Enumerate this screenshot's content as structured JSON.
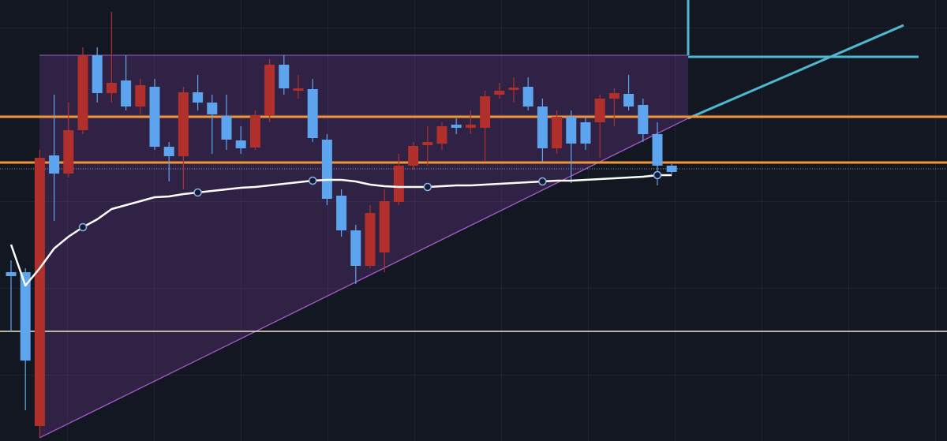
{
  "chart_data": {
    "type": "candlestick",
    "ylim": [
      0,
      559
    ],
    "up_color": "#b2302b",
    "down_color": "#5ea5f0",
    "open": [
      214,
      214,
      19,
      362,
      339,
      394,
      489,
      441,
      457,
      424,
      449,
      373,
      361,
      442,
      429,
      412,
      381,
      372,
      413,
      477,
      444,
      446,
      382,
      311,
      267,
      222,
      239,
      303,
      349,
      375,
      377,
      401,
      397,
      397,
      439,
      445,
      449,
      424,
      371,
      411,
      404,
      404,
      434,
      440,
      426,
      389,
      349
    ],
    "high": [
      229,
      219,
      369,
      439,
      429,
      499,
      499,
      544,
      489,
      459,
      459,
      379,
      449,
      464,
      439,
      439,
      399,
      419,
      484,
      489,
      464,
      459,
      389,
      319,
      274,
      299,
      319,
      364,
      379,
      399,
      404,
      409,
      419,
      444,
      454,
      461,
      461,
      434,
      419,
      419,
      411,
      439,
      447,
      464,
      434,
      404,
      351
    ],
    "low": [
      139,
      39,
      4,
      279,
      334,
      389,
      429,
      429,
      419,
      414,
      369,
      329,
      319,
      419,
      364,
      369,
      364,
      369,
      404,
      439,
      434,
      379,
      299,
      259,
      199,
      219,
      214,
      299,
      344,
      349,
      369,
      389,
      389,
      354,
      434,
      429,
      419,
      354,
      364,
      327,
      369,
      359,
      399,
      419,
      379,
      324,
      339
    ],
    "close": [
      209,
      102,
      359,
      339,
      394,
      489,
      441,
      454,
      424,
      451,
      373,
      361,
      442,
      429,
      414,
      382,
      371,
      413,
      477,
      447,
      447,
      384,
      307,
      267,
      222,
      289,
      304,
      349,
      374,
      379,
      399,
      397,
      401,
      437,
      444,
      448,
      424,
      371,
      411,
      377,
      377,
      434,
      441,
      424,
      389,
      349,
      341
    ],
    "moving_average": {
      "color": "#ffffff",
      "values": [
        249,
        197,
        219,
        244,
        259,
        271,
        281,
        294,
        299,
        304,
        309,
        310,
        313,
        315,
        317,
        319,
        321,
        322,
        324,
        326,
        328,
        330,
        331,
        331,
        329,
        325,
        323,
        322,
        322,
        322,
        323,
        324,
        324,
        325,
        326,
        327,
        328,
        329,
        330,
        330,
        331,
        332,
        333,
        334,
        335,
        337,
        337
      ]
    },
    "horizontal_lines": [
      {
        "value": 411,
        "color": "#f0953a"
      },
      {
        "value": 353,
        "color": "#f0953a"
      },
      {
        "value": 139,
        "color": "#f3e6c8"
      }
    ]
  }
}
